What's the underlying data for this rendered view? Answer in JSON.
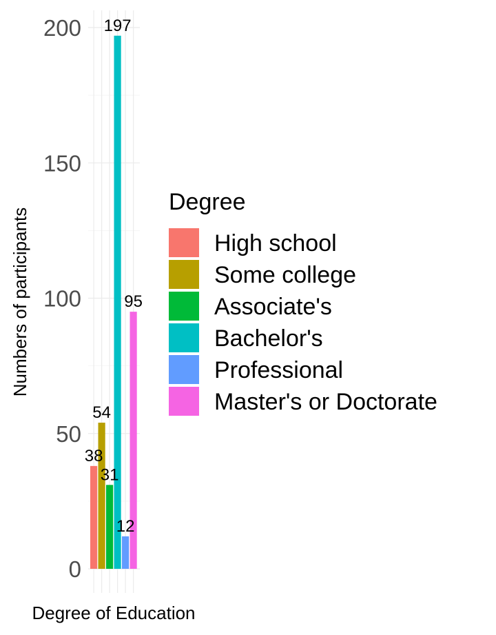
{
  "chart_data": {
    "type": "bar",
    "title": "",
    "xlabel": "Degree of Education",
    "ylabel": "Numbers of participants",
    "ylim": [
      0,
      200
    ],
    "yticks": [
      0,
      50,
      100,
      150,
      200
    ],
    "grid": true,
    "legend": {
      "title": "Degree",
      "position": "right"
    },
    "categories": [
      "High school",
      "Some college",
      "Associate's",
      "Bachelor's",
      "Professional",
      "Master's or Doctorate"
    ],
    "values": [
      38,
      54,
      31,
      197,
      12,
      95
    ],
    "data_labels": [
      "38",
      "54",
      "31",
      "197",
      "12",
      "95"
    ],
    "colors": [
      "#F8766D",
      "#B79F00",
      "#00BA38",
      "#00BFC4",
      "#619CFF",
      "#F564E3"
    ]
  }
}
